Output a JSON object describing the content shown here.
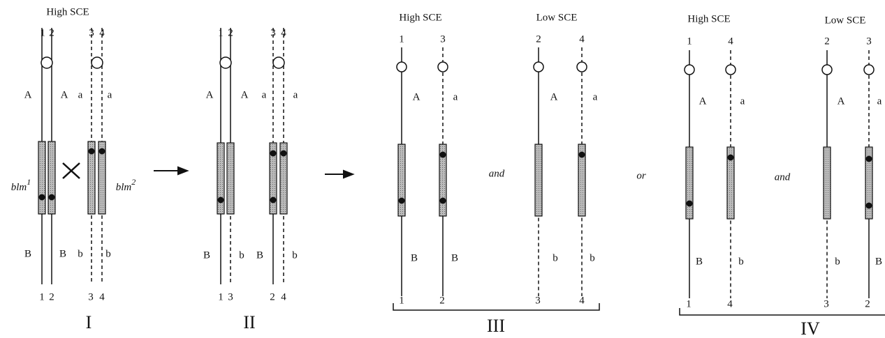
{
  "panels": [
    {
      "roman": "I",
      "headers": [
        "High SCE"
      ],
      "top_labels": [
        "1",
        "2",
        "3",
        "4"
      ],
      "bottom_labels": [
        "1",
        "2",
        "3",
        "4"
      ],
      "upper_alleles": [
        "A",
        "A",
        "a",
        "a"
      ],
      "lower_alleles": [
        "B",
        "B",
        "b",
        "b"
      ],
      "gene_labels": [
        {
          "text": "blm",
          "sup": "1"
        },
        {
          "text": "blm",
          "sup": "2"
        }
      ]
    },
    {
      "roman": "II",
      "top_labels": [
        "1",
        "2",
        "3",
        "4"
      ],
      "bottom_labels": [
        "1",
        "3",
        "2",
        "4"
      ],
      "upper_alleles": [
        "A",
        "A",
        "a",
        "a"
      ],
      "lower_alleles": [
        "B",
        "b",
        "B",
        "b"
      ]
    },
    {
      "roman": "III",
      "headers": [
        "High SCE",
        "Low SCE"
      ],
      "conjunction": "and",
      "top_labels": [
        "1",
        "3",
        "2",
        "4"
      ],
      "bottom_labels": [
        "1",
        "2",
        "3",
        "4"
      ],
      "upper_alleles": [
        "A",
        "a",
        "A",
        "a"
      ],
      "lower_alleles": [
        "B",
        "B",
        "b",
        "b"
      ]
    },
    {
      "roman": "IV",
      "headers": [
        "High SCE",
        "Low SCE"
      ],
      "conjunction": "and",
      "top_labels": [
        "1",
        "4",
        "2",
        "3"
      ],
      "bottom_labels": [
        "1",
        "4",
        "3",
        "2"
      ],
      "upper_alleles": [
        "A",
        "a",
        "A",
        "a"
      ],
      "lower_alleles": [
        "B",
        "b",
        "b",
        "B"
      ]
    }
  ],
  "between": "or"
}
